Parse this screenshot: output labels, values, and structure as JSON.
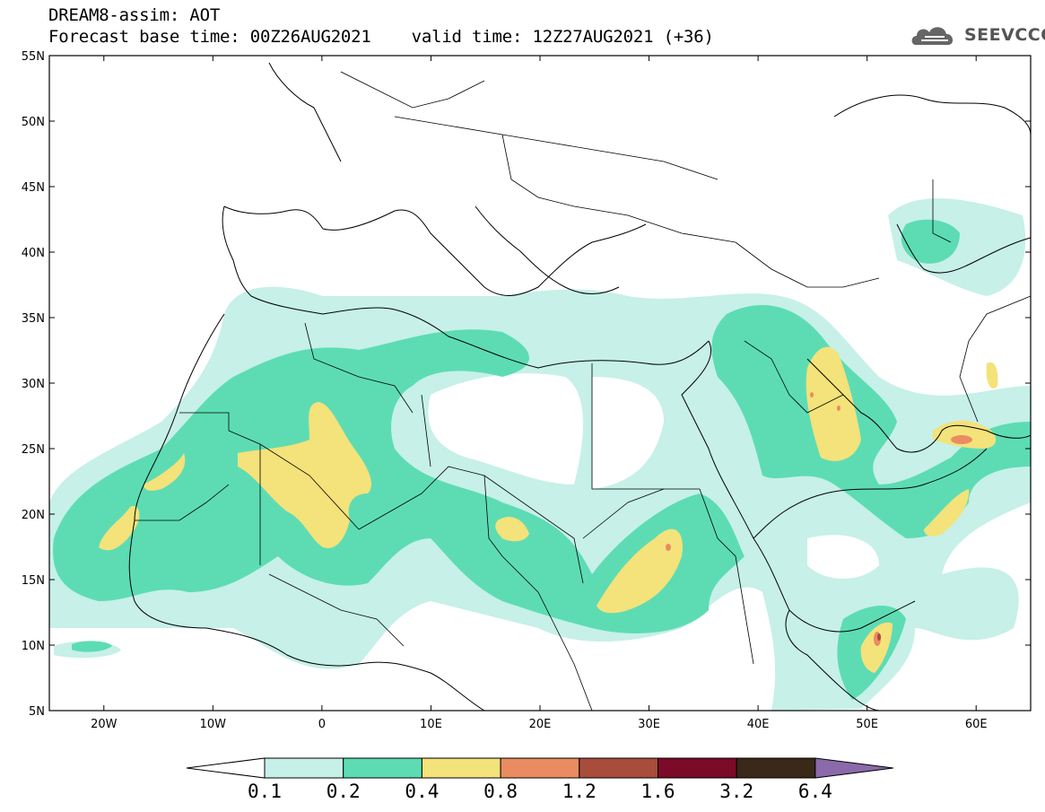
{
  "header": {
    "title_line1": "DREAM8-assim: AOT",
    "title_line2": "Forecast base time: 00Z26AUG2021    valid time: 12Z27AUG2021 (+36)"
  },
  "logo": {
    "text": "SEEVCCC",
    "icon": "cloud-icon"
  },
  "map": {
    "lon_range": [
      -25,
      65
    ],
    "lat_range": [
      5,
      55
    ],
    "lat_ticks": [
      "55N",
      "50N",
      "45N",
      "40N",
      "35N",
      "30N",
      "25N",
      "20N",
      "15N",
      "10N",
      "5N"
    ],
    "lon_ticks": [
      "20W",
      "10W",
      "0",
      "10E",
      "20E",
      "30E",
      "40E",
      "50E",
      "60E"
    ]
  },
  "legend": {
    "labels": [
      "0.1",
      "0.2",
      "0.4",
      "0.8",
      "1.2",
      "1.6",
      "3.2",
      "6.4"
    ],
    "colors": [
      "#ffffff",
      "#c6f0e8",
      "#5ddcb4",
      "#f4e27a",
      "#e98c62",
      "#a84c3c",
      "#7a0a28",
      "#3a2818",
      "#8a6aaa"
    ]
  }
}
